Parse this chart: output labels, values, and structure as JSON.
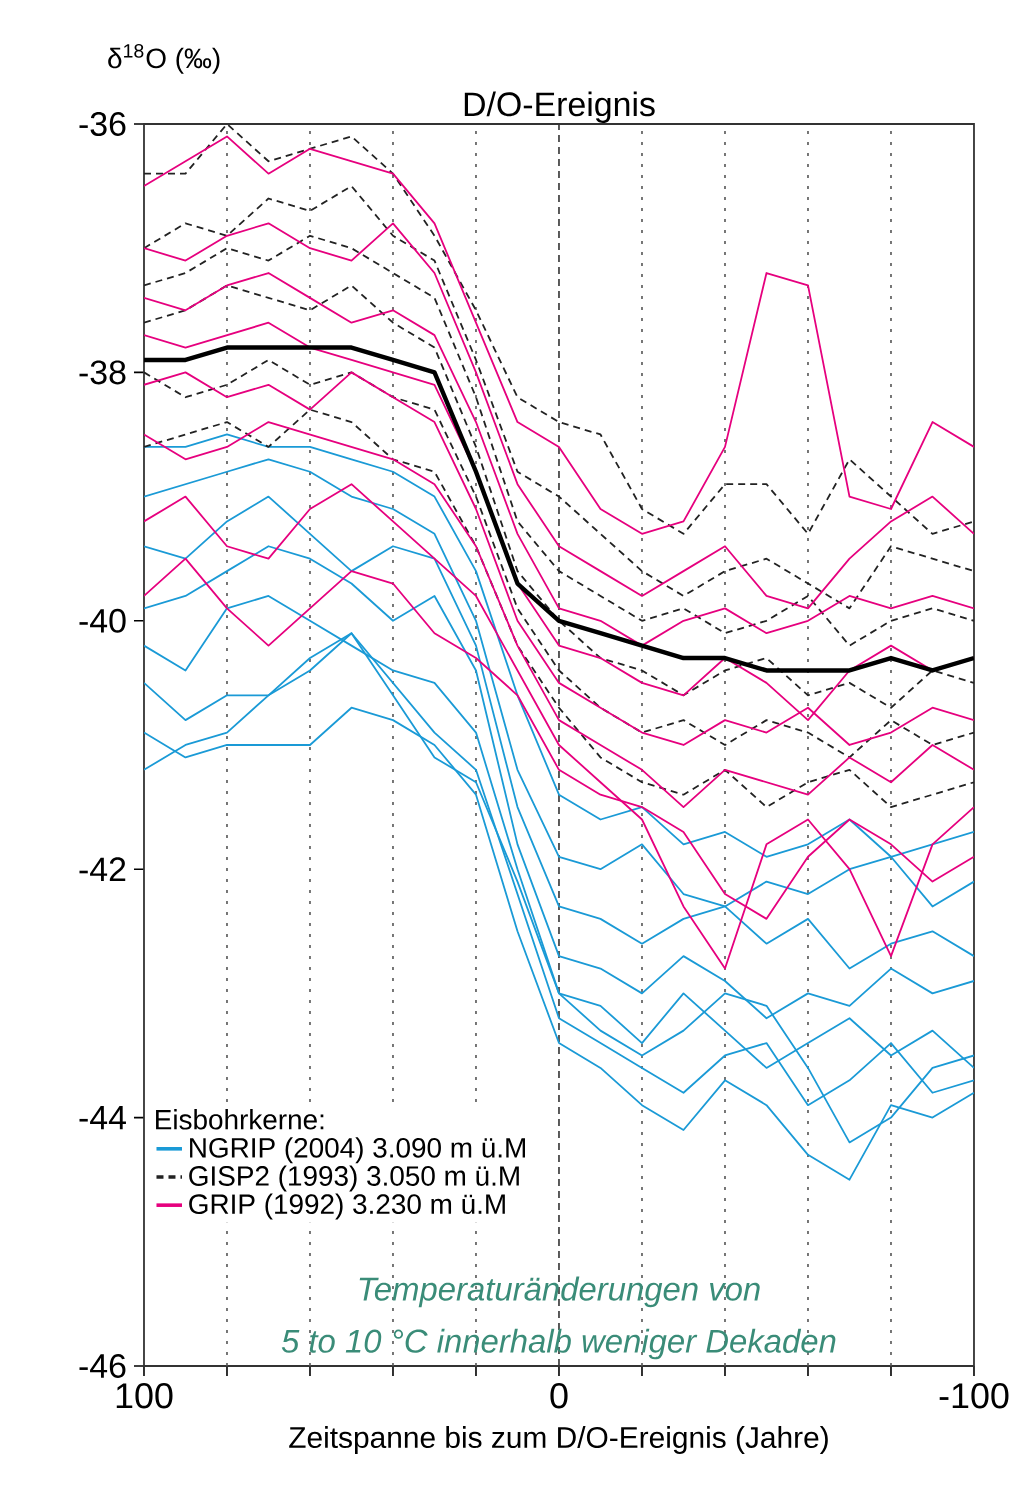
{
  "chart_data": {
    "type": "line",
    "title": "D/O-Ereignis",
    "ylabel": "δ$^{18}$O (‰)",
    "xlabel": "Zeitspanne bis zum D/O-Ereignis (Jahre)",
    "legend_title": "Eisbohrkerne:",
    "legend": "bottom left",
    "grid": false,
    "marker": "none",
    "xlim": [
      100,
      -100
    ],
    "ylim": [
      -46,
      -36
    ],
    "xticks": [
      100,
      {
        "value": 80,
        "label": null
      },
      {
        "value": 60,
        "label": null
      },
      {
        "value": 40,
        "label": null
      },
      {
        "value": 20,
        "label": null
      },
      0,
      {
        "value": -20,
        "label": null
      },
      {
        "value": -40,
        "label": null
      },
      {
        "value": -60,
        "label": null
      },
      {
        "value": -80,
        "label": null
      },
      -100
    ],
    "yticks": [
      -36,
      -38,
      -40,
      -42,
      -44,
      -46
    ],
    "ref_lines": [
      {
        "axis": "x",
        "value": 80,
        "line_style": "dotted",
        "color": "#555555"
      },
      {
        "axis": "x",
        "value": 60,
        "line_style": "dotted",
        "color": "#555555"
      },
      {
        "axis": "x",
        "value": 40,
        "line_style": "dotted",
        "color": "#555555"
      },
      {
        "axis": "x",
        "value": 20,
        "line_style": "dotted",
        "color": "#555555"
      },
      {
        "axis": "x",
        "value": 0,
        "line_style": "dashed",
        "color": "#333333"
      },
      {
        "axis": "x",
        "value": -20,
        "line_style": "dotted",
        "color": "#555555"
      },
      {
        "axis": "x",
        "value": -40,
        "line_style": "dotted",
        "color": "#555555"
      },
      {
        "axis": "x",
        "value": -60,
        "line_style": "dotted",
        "color": "#555555"
      },
      {
        "axis": "x",
        "value": -80,
        "line_style": "dotted",
        "color": "#555555"
      }
    ],
    "annotations": [
      "Temperaturänderungen von",
      "5 to 10 °C innerhalb weniger Dekaden"
    ],
    "x": [
      100,
      90,
      80,
      70,
      60,
      50,
      40,
      30,
      20,
      10,
      0,
      -10,
      -20,
      -30,
      -40,
      -50,
      -60,
      -70,
      -80,
      -90,
      -100
    ],
    "series": [
      {
        "name": "NGRIP (2004) 3.090 m ü.M",
        "color": "#1a9ad6",
        "line_style": "solid",
        "values": [
          -38.6,
          -38.6,
          -38.5,
          -38.6,
          -38.6,
          -38.7,
          -38.8,
          -39.0,
          -39.6,
          -40.6,
          -41.4,
          -41.6,
          -41.5,
          -41.8,
          -41.7,
          -41.9,
          -41.8,
          -41.6,
          -41.9,
          -41.8,
          -41.7
        ]
      },
      {
        "color": "#1a9ad6",
        "line_style": "solid",
        "values": [
          -39.0,
          -38.9,
          -38.8,
          -38.7,
          -38.8,
          -39.0,
          -39.1,
          -39.3,
          -40.0,
          -41.2,
          -41.9,
          -42.0,
          -41.8,
          -42.2,
          -42.3,
          -42.1,
          -42.2,
          -42.0,
          -41.9,
          -42.3,
          -42.1
        ]
      },
      {
        "color": "#1a9ad6",
        "line_style": "solid",
        "values": [
          -39.4,
          -39.5,
          -39.2,
          -39.0,
          -39.3,
          -39.6,
          -39.4,
          -39.5,
          -40.2,
          -41.5,
          -42.3,
          -42.4,
          -42.6,
          -42.4,
          -42.3,
          -42.6,
          -42.4,
          -42.8,
          -42.6,
          -42.5,
          -42.7
        ]
      },
      {
        "color": "#1a9ad6",
        "line_style": "solid",
        "values": [
          -39.9,
          -39.8,
          -39.6,
          -39.4,
          -39.5,
          -39.7,
          -40.0,
          -39.8,
          -40.4,
          -41.8,
          -42.7,
          -42.8,
          -43.0,
          -42.7,
          -42.9,
          -43.2,
          -43.0,
          -43.1,
          -42.8,
          -43.0,
          -42.9
        ]
      },
      {
        "color": "#1a9ad6",
        "line_style": "solid",
        "values": [
          -40.2,
          -40.4,
          -39.9,
          -39.8,
          -40.0,
          -40.2,
          -40.4,
          -40.5,
          -40.9,
          -42.0,
          -43.0,
          -43.1,
          -43.4,
          -43.0,
          -43.3,
          -43.6,
          -43.4,
          -43.2,
          -43.5,
          -43.3,
          -43.6
        ]
      },
      {
        "color": "#1a9ad6",
        "line_style": "solid",
        "values": [
          -40.5,
          -40.8,
          -40.6,
          -40.6,
          -40.4,
          -40.1,
          -40.5,
          -40.9,
          -41.2,
          -42.2,
          -43.2,
          -43.4,
          -43.6,
          -43.8,
          -43.5,
          -43.4,
          -43.9,
          -43.7,
          -43.4,
          -43.8,
          -43.7
        ]
      },
      {
        "color": "#1a9ad6",
        "line_style": "solid",
        "values": [
          -40.9,
          -41.1,
          -41.0,
          -41.0,
          -41.0,
          -40.7,
          -40.8,
          -41.0,
          -41.4,
          -42.5,
          -43.4,
          -43.6,
          -43.9,
          -44.1,
          -43.7,
          -43.9,
          -44.3,
          -44.5,
          -43.9,
          -44.0,
          -43.8
        ]
      },
      {
        "color": "#1a9ad6",
        "line_style": "solid",
        "values": [
          -41.2,
          -41.0,
          -40.9,
          -40.6,
          -40.3,
          -40.1,
          -40.6,
          -41.1,
          -41.3,
          -42.1,
          -43.0,
          -43.3,
          -43.5,
          -43.3,
          -43.0,
          -43.1,
          -43.6,
          -44.2,
          -44.0,
          -43.6,
          -43.5
        ]
      },
      {
        "name": "GISP2 (1993)  3.050 m ü.M",
        "color": "#222222",
        "line_style": "dashed",
        "values": [
          -36.4,
          -36.4,
          -36.0,
          -36.3,
          -36.2,
          -36.1,
          -36.4,
          -36.9,
          -37.5,
          -38.2,
          -38.4,
          -38.5,
          -39.1,
          -39.3,
          -38.9,
          -38.9,
          -39.3,
          -38.7,
          -39.0,
          -39.3,
          -39.2
        ]
      },
      {
        "color": "#222222",
        "line_style": "dashed",
        "values": [
          -37.0,
          -36.8,
          -36.9,
          -36.6,
          -36.7,
          -36.5,
          -36.9,
          -37.1,
          -37.9,
          -38.8,
          -39.0,
          -39.3,
          -39.6,
          -39.8,
          -39.6,
          -39.5,
          -39.7,
          -39.9,
          -39.4,
          -39.5,
          -39.6
        ]
      },
      {
        "color": "#222222",
        "line_style": "dashed",
        "values": [
          -37.3,
          -37.2,
          -37.0,
          -37.1,
          -36.9,
          -37.0,
          -37.2,
          -37.4,
          -38.2,
          -39.2,
          -39.6,
          -39.8,
          -40.0,
          -39.9,
          -40.1,
          -40.0,
          -39.8,
          -40.2,
          -40.0,
          -39.9,
          -40.0
        ]
      },
      {
        "color": "#222222",
        "line_style": "dashed",
        "values": [
          -37.6,
          -37.5,
          -37.3,
          -37.4,
          -37.5,
          -37.3,
          -37.6,
          -37.8,
          -38.6,
          -39.6,
          -40.0,
          -40.3,
          -40.4,
          -40.6,
          -40.4,
          -40.3,
          -40.6,
          -40.5,
          -40.7,
          -40.4,
          -40.5
        ]
      },
      {
        "color": "#222222",
        "line_style": "dashed",
        "values": [
          -38.0,
          -38.2,
          -38.1,
          -37.9,
          -38.1,
          -38.0,
          -38.2,
          -38.3,
          -39.0,
          -39.9,
          -40.4,
          -40.7,
          -40.9,
          -40.8,
          -41.0,
          -40.8,
          -40.9,
          -41.1,
          -40.8,
          -41.0,
          -40.9
        ]
      },
      {
        "color": "#222222",
        "line_style": "dashed",
        "values": [
          -38.6,
          -38.5,
          -38.4,
          -38.6,
          -38.3,
          -38.4,
          -38.7,
          -38.8,
          -39.4,
          -40.2,
          -40.7,
          -41.1,
          -41.3,
          -41.4,
          -41.2,
          -41.5,
          -41.3,
          -41.2,
          -41.5,
          -41.4,
          -41.3
        ]
      },
      {
        "name": "GRIP   (1992)  3.230 m ü.M",
        "color": "#e6007e",
        "line_style": "solid",
        "values": [
          -36.5,
          -36.3,
          -36.1,
          -36.4,
          -36.2,
          -36.3,
          -36.4,
          -36.8,
          -37.6,
          -38.4,
          -38.6,
          -39.1,
          -39.3,
          -39.2,
          -38.6,
          -37.2,
          -37.3,
          -39.0,
          -39.1,
          -38.4,
          -38.6
        ]
      },
      {
        "color": "#e6007e",
        "line_style": "solid",
        "values": [
          -37.0,
          -37.1,
          -36.9,
          -36.8,
          -37.0,
          -37.1,
          -36.8,
          -37.2,
          -38.0,
          -38.9,
          -39.4,
          -39.6,
          -39.8,
          -39.6,
          -39.4,
          -39.8,
          -39.9,
          -39.5,
          -39.2,
          -39.0,
          -39.3
        ]
      },
      {
        "color": "#e6007e",
        "line_style": "solid",
        "values": [
          -37.4,
          -37.5,
          -37.3,
          -37.2,
          -37.4,
          -37.6,
          -37.5,
          -37.7,
          -38.4,
          -39.3,
          -39.9,
          -40.0,
          -40.2,
          -40.0,
          -39.9,
          -40.1,
          -40.0,
          -39.8,
          -39.9,
          -39.8,
          -39.9
        ]
      },
      {
        "color": "#e6007e",
        "line_style": "solid",
        "values": [
          -37.7,
          -37.8,
          -37.7,
          -37.6,
          -37.8,
          -37.9,
          -38.0,
          -38.1,
          -38.8,
          -39.7,
          -40.2,
          -40.3,
          -40.5,
          -40.6,
          -40.3,
          -40.5,
          -40.8,
          -40.4,
          -40.2,
          -40.4,
          -40.3
        ]
      },
      {
        "color": "#e6007e",
        "line_style": "solid",
        "values": [
          -38.1,
          -38.0,
          -38.2,
          -38.1,
          -38.3,
          -38.0,
          -38.2,
          -38.4,
          -39.1,
          -40.0,
          -40.5,
          -40.7,
          -40.9,
          -41.0,
          -40.8,
          -40.9,
          -40.7,
          -41.0,
          -40.9,
          -40.7,
          -40.8
        ]
      },
      {
        "color": "#e6007e",
        "line_style": "solid",
        "values": [
          -38.5,
          -38.7,
          -38.6,
          -38.4,
          -38.5,
          -38.6,
          -38.7,
          -38.9,
          -39.4,
          -40.2,
          -40.8,
          -41.0,
          -41.2,
          -41.5,
          -41.2,
          -41.3,
          -41.4,
          -41.1,
          -41.3,
          -41.0,
          -41.2
        ]
      },
      {
        "color": "#e6007e",
        "line_style": "solid",
        "values": [
          -39.2,
          -39.0,
          -39.4,
          -39.5,
          -39.1,
          -38.9,
          -39.2,
          -39.5,
          -39.8,
          -40.4,
          -41.0,
          -41.3,
          -41.6,
          -42.3,
          -42.8,
          -41.8,
          -41.6,
          -42.0,
          -42.7,
          -41.8,
          -41.5
        ]
      },
      {
        "color": "#e6007e",
        "line_style": "solid",
        "values": [
          -39.8,
          -39.5,
          -39.9,
          -40.2,
          -39.9,
          -39.6,
          -39.7,
          -40.1,
          -40.3,
          -40.6,
          -41.2,
          -41.4,
          -41.5,
          -41.7,
          -42.2,
          -42.4,
          -41.9,
          -41.6,
          -41.8,
          -42.1,
          -41.9
        ]
      },
      {
        "color": "#000000",
        "line_style": "solid",
        "values": [
          -37.9,
          -37.9,
          -37.8,
          -37.8,
          -37.8,
          -37.8,
          -37.9,
          -38.0,
          -38.8,
          -39.7,
          -40.0,
          -40.1,
          -40.2,
          -40.3,
          -40.3,
          -40.4,
          -40.4,
          -40.4,
          -40.3,
          -40.4,
          -40.3
        ]
      }
    ]
  }
}
